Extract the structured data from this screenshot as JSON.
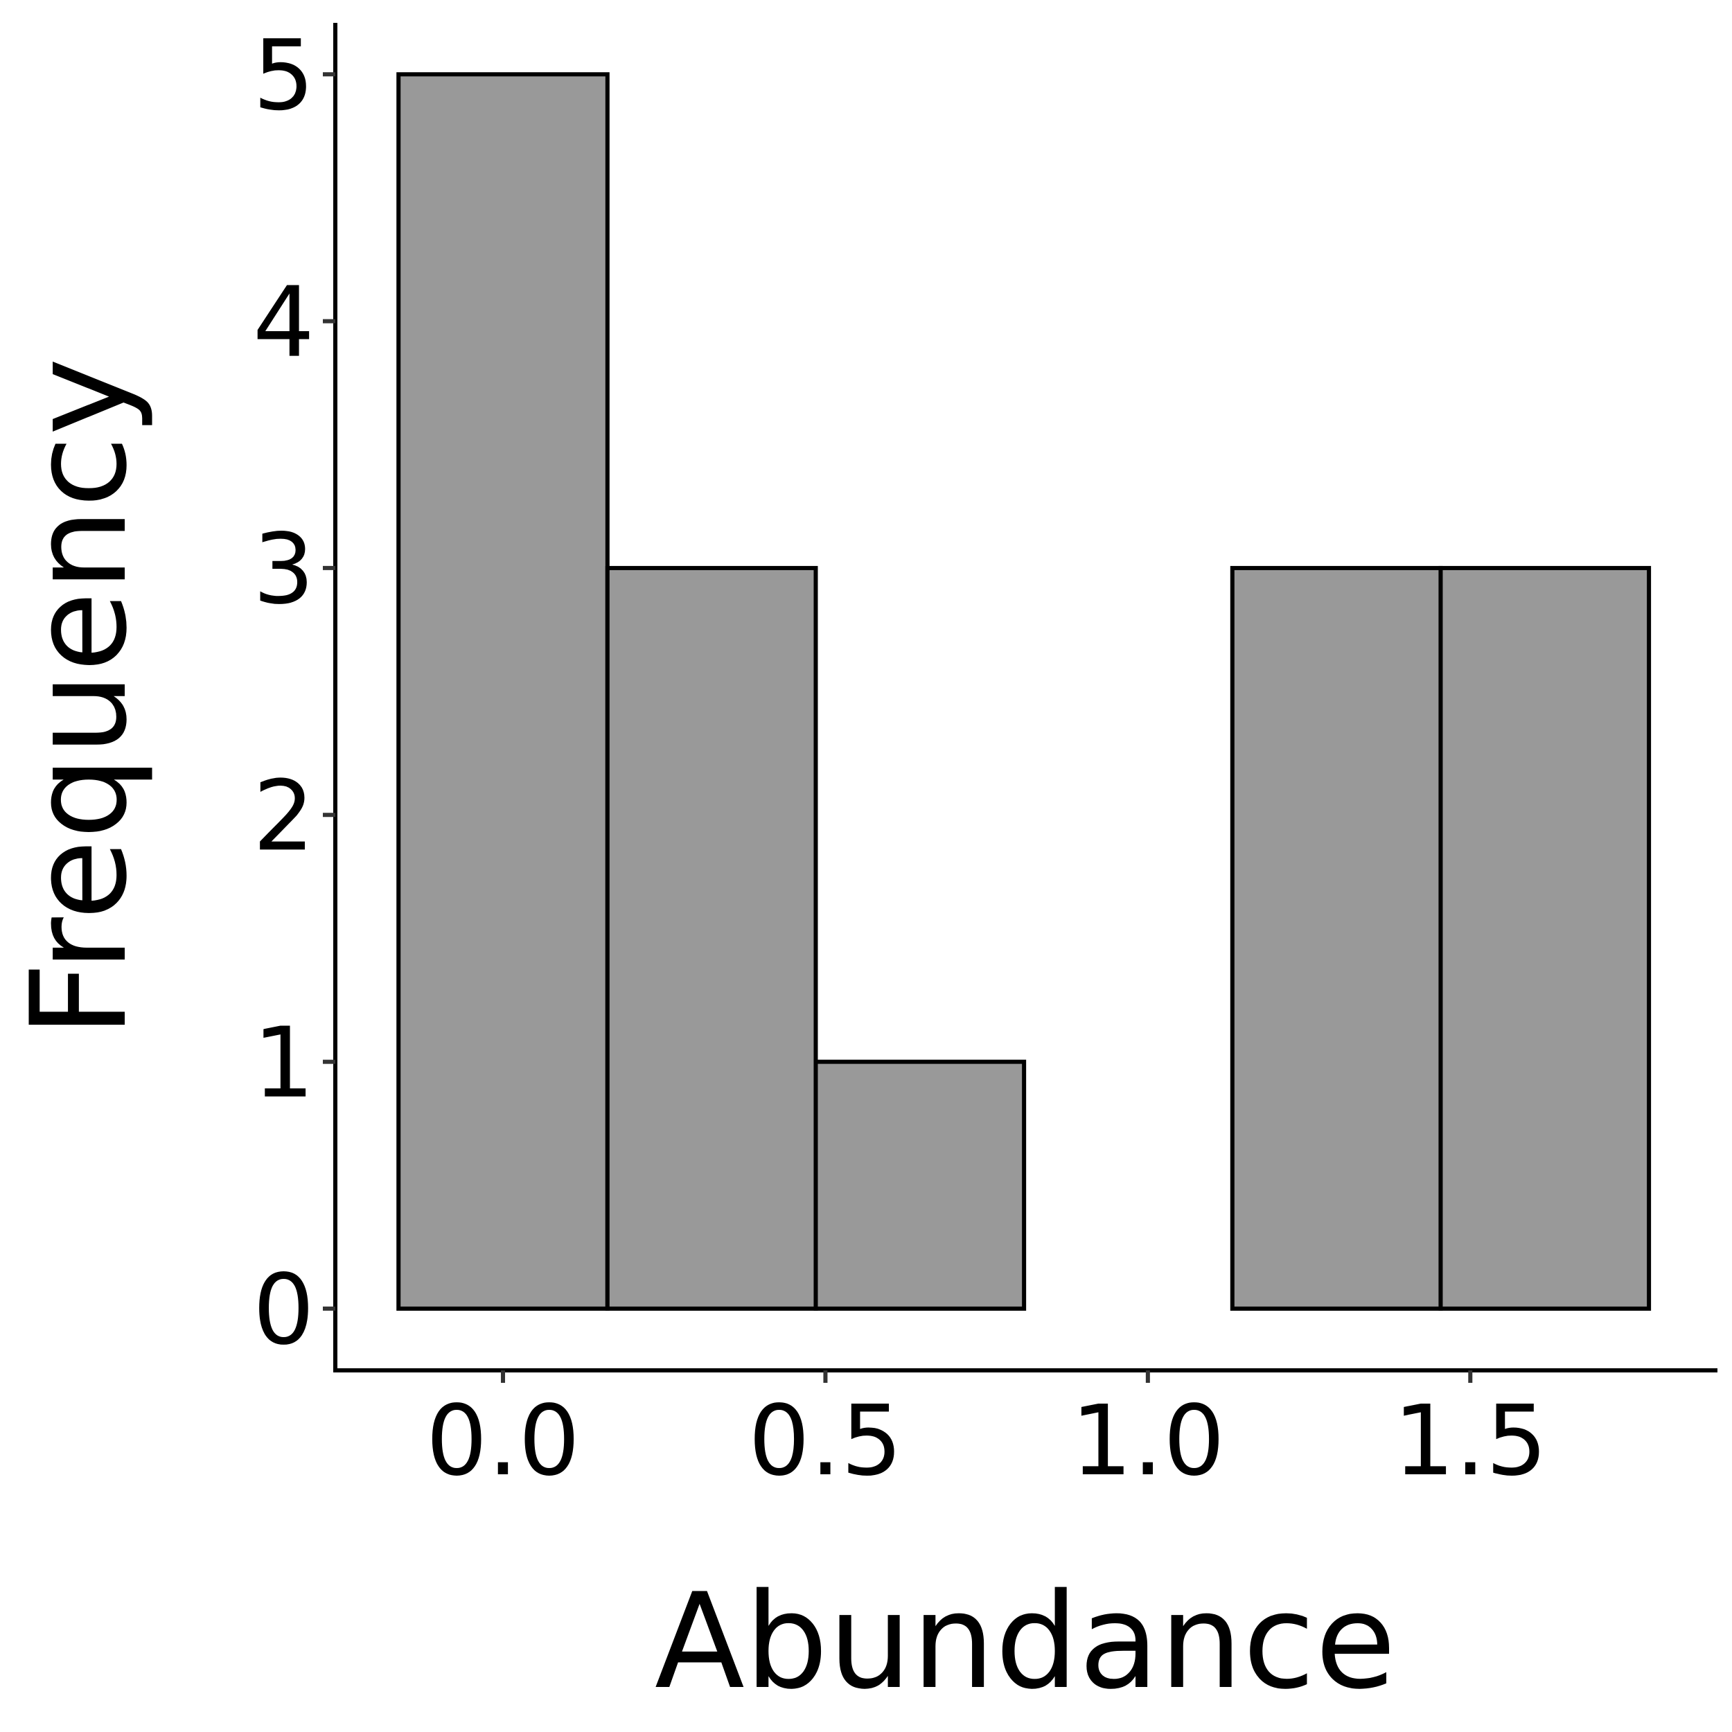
{
  "chart_data": {
    "type": "bar",
    "subtype": "histogram",
    "title": "",
    "xlabel": "Abundance",
    "ylabel": "Frequency",
    "bins": [
      {
        "x0": -0.162,
        "x1": 0.162,
        "count": 5
      },
      {
        "x0": 0.162,
        "x1": 0.485,
        "count": 3
      },
      {
        "x0": 0.485,
        "x1": 0.808,
        "count": 1
      },
      {
        "x0": 0.808,
        "x1": 1.131,
        "count": 0
      },
      {
        "x0": 1.131,
        "x1": 1.454,
        "count": 3
      },
      {
        "x0": 1.454,
        "x1": 1.777,
        "count": 3
      }
    ],
    "xlim": [
      -0.26,
      1.88
    ],
    "ylim": [
      -0.25,
      5.2
    ],
    "xticks": [
      0.0,
      0.5,
      1.0,
      1.5
    ],
    "xtick_labels": [
      "0.0",
      "0.5",
      "1.0",
      "1.5"
    ],
    "yticks": [
      0,
      1,
      2,
      3,
      4,
      5
    ],
    "ytick_labels": [
      "0",
      "1",
      "2",
      "3",
      "4",
      "5"
    ],
    "grid": false,
    "legend": "none",
    "colors": {
      "bar_fill": "#999999",
      "bar_stroke": "#000000",
      "axis": "#000000",
      "tick": "#333333"
    }
  }
}
